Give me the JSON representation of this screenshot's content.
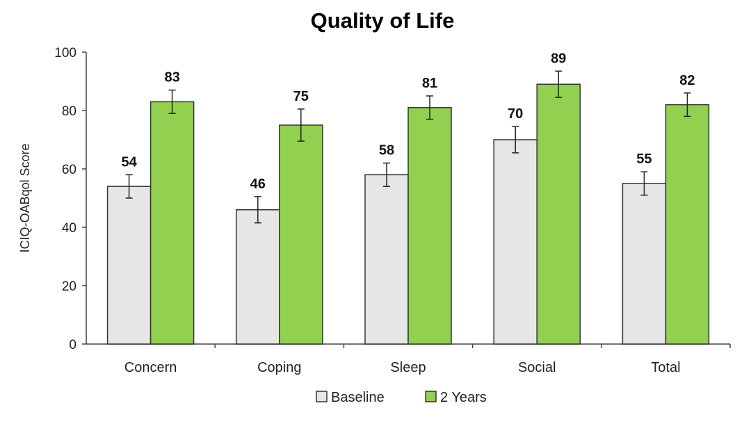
{
  "chart_data": {
    "type": "bar",
    "title": "Quality of Life",
    "xlabel": "",
    "ylabel": "ICIQ-OABqol Score",
    "ylim": [
      0,
      100
    ],
    "yticks": [
      0,
      20,
      40,
      60,
      80,
      100
    ],
    "grid": false,
    "legend_position": "bottom",
    "categories": [
      "Concern",
      "Coping",
      "Sleep",
      "Social",
      "Total"
    ],
    "series": [
      {
        "name": "Baseline",
        "color": "#e6e6e6",
        "values": [
          54,
          46,
          58,
          70,
          55
        ],
        "labels": [
          "54",
          "46",
          "58",
          "70",
          "55"
        ],
        "error": [
          4,
          4.5,
          4,
          4.5,
          4
        ]
      },
      {
        "name": "2 Years",
        "color": "#92d050",
        "values": [
          83,
          75,
          81,
          89,
          82
        ],
        "labels": [
          "83",
          "75",
          "81",
          "89",
          "82"
        ],
        "error": [
          4,
          5.5,
          4,
          4.5,
          4
        ]
      }
    ]
  }
}
